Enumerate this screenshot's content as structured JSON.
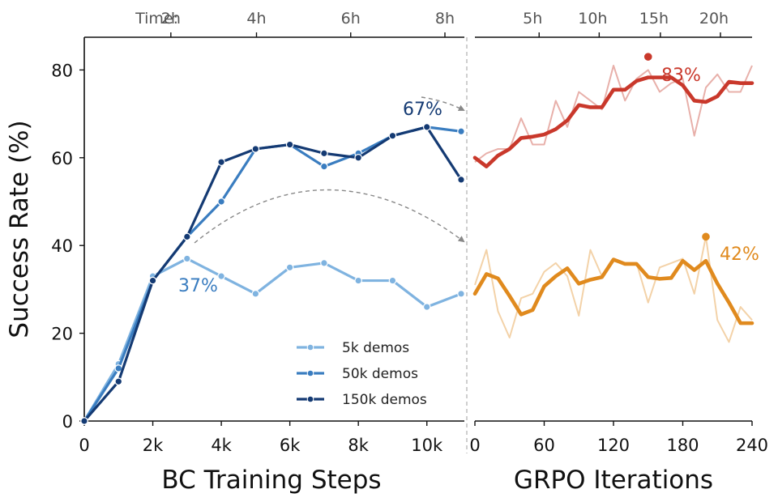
{
  "chart_data": [
    {
      "type": "line",
      "xlabel": "BC Training Steps",
      "ylabel": "Success Rate (%)",
      "x_ticks": [
        {
          "value": 0,
          "label": "0"
        },
        {
          "value": 2000,
          "label": "2k"
        },
        {
          "value": 4000,
          "label": "4k"
        },
        {
          "value": 6000,
          "label": "6k"
        },
        {
          "value": 8000,
          "label": "8k"
        },
        {
          "value": 10000,
          "label": "10k"
        }
      ],
      "y_ticks": [
        0,
        20,
        40,
        60,
        80
      ],
      "xlim": [
        0,
        11000
      ],
      "ylim": [
        0,
        88
      ],
      "top_axis": {
        "prefix": "Time:",
        "ticks": [
          {
            "value": 3000,
            "label": "2h"
          },
          {
            "value": 5500,
            "label": "4h"
          },
          {
            "value": 8250,
            "label": "6h"
          },
          {
            "value": 11000,
            "label": "8h"
          }
        ]
      },
      "legend": {
        "position": "bottom-right",
        "entries": [
          "5k demos",
          "50k demos",
          "150k demos"
        ]
      },
      "series": [
        {
          "name": "5k demos",
          "color": "#7fb3e0",
          "x": [
            0,
            1000,
            2000,
            3000,
            4000,
            5000,
            6000,
            7000,
            8000,
            9000,
            10000,
            11000
          ],
          "y": [
            0,
            13,
            33,
            37,
            33,
            29,
            35,
            36,
            32,
            32,
            26,
            29
          ]
        },
        {
          "name": "50k demos",
          "color": "#3a7dc0",
          "x": [
            0,
            1000,
            2000,
            3000,
            4000,
            5000,
            6000,
            7000,
            8000,
            9000,
            10000,
            11000
          ],
          "y": [
            0,
            12,
            32,
            42,
            50,
            62,
            63,
            58,
            61,
            65,
            67,
            66
          ]
        },
        {
          "name": "150k demos",
          "color": "#143a73",
          "x": [
            0,
            1000,
            2000,
            3000,
            4000,
            5000,
            6000,
            7000,
            8000,
            9000,
            10000,
            11000
          ],
          "y": [
            0,
            9,
            32,
            42,
            59,
            62,
            63,
            61,
            60,
            65,
            67,
            55
          ]
        }
      ],
      "annotations": [
        {
          "text": "37%",
          "color": "#3a7dc0"
        },
        {
          "text": "67%",
          "color": "#143a73"
        }
      ]
    },
    {
      "type": "line",
      "xlabel": "GRPO Iterations",
      "x_ticks": [
        {
          "value": 0,
          "label": "0"
        },
        {
          "value": 60,
          "label": "60"
        },
        {
          "value": 120,
          "label": "120"
        },
        {
          "value": 180,
          "label": "180"
        },
        {
          "value": 240,
          "label": "240"
        }
      ],
      "xlim": [
        0,
        240
      ],
      "ylim": [
        0,
        88
      ],
      "top_axis": {
        "ticks": [
          {
            "value": 50,
            "label": "5h"
          },
          {
            "value": 102,
            "label": "10h"
          },
          {
            "value": 155,
            "label": "15h"
          },
          {
            "value": 207,
            "label": "20h"
          }
        ]
      },
      "series": [
        {
          "color": "#c9382b",
          "raw_color": "#e8b0aa",
          "raw_x": [
            0,
            10,
            20,
            30,
            40,
            50,
            60,
            70,
            80,
            90,
            100,
            110,
            120,
            130,
            140,
            150,
            160,
            170,
            180,
            190,
            200,
            210,
            220,
            230,
            240
          ],
          "raw_y": [
            59,
            61,
            62,
            62,
            69,
            63,
            63,
            73,
            67,
            75,
            73,
            71,
            81,
            73,
            78,
            80,
            75,
            77,
            78,
            65,
            76,
            79,
            75,
            75,
            81
          ],
          "smooth_x": [
            0,
            10,
            20,
            30,
            40,
            50,
            60,
            70,
            80,
            90,
            100,
            110,
            120,
            130,
            140,
            150,
            160,
            170,
            180,
            190,
            200,
            210,
            220,
            230,
            240
          ],
          "smooth_y": [
            60,
            58,
            60.5,
            62,
            64.5,
            64.8,
            65.3,
            66.5,
            68.5,
            72,
            71.5,
            71.5,
            75.5,
            75.5,
            77.5,
            78.3,
            78.3,
            78.3,
            76.5,
            73,
            72.7,
            74,
            77.3,
            77,
            77
          ],
          "peak": {
            "x": 150,
            "y": 83,
            "label": "83%"
          }
        },
        {
          "color": "#e08a1e",
          "raw_color": "#f3d2a8",
          "raw_x": [
            0,
            10,
            20,
            30,
            40,
            50,
            60,
            70,
            80,
            90,
            100,
            110,
            120,
            130,
            140,
            150,
            160,
            170,
            180,
            190,
            200,
            210,
            220,
            230,
            240
          ],
          "raw_y": [
            31,
            39,
            25,
            19,
            28,
            29,
            34,
            36,
            33,
            24,
            39,
            33,
            37,
            36,
            36,
            27,
            35,
            36,
            37,
            29,
            42,
            23,
            18,
            26,
            23
          ],
          "smooth_x": [
            0,
            10,
            20,
            30,
            40,
            50,
            60,
            70,
            80,
            90,
            100,
            110,
            120,
            130,
            140,
            150,
            160,
            170,
            180,
            190,
            200,
            210,
            220,
            230,
            240
          ],
          "smooth_y": [
            29,
            33.5,
            32.5,
            28.5,
            24.3,
            25.3,
            30.7,
            33,
            34.8,
            31.3,
            32.2,
            32.8,
            36.8,
            35.8,
            35.8,
            32.8,
            32.4,
            32.6,
            36.5,
            34.4,
            36.5,
            31.3,
            27,
            22.3,
            22.3
          ],
          "peak": {
            "x": 200,
            "y": 42,
            "label": "42%"
          }
        }
      ]
    }
  ]
}
